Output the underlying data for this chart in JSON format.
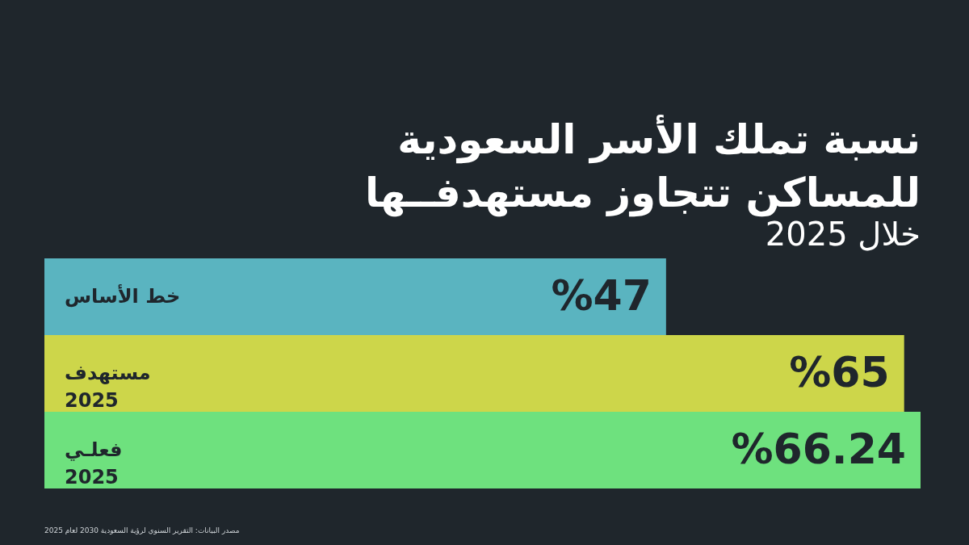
{
  "chart_data": {
    "type": "bar",
    "orientation": "horizontal",
    "title": "نسبة تملك الأسر السعودية\nللمساكن تتجاوز مستهدفــها",
    "subtitle": "خلال 2025",
    "categories": [
      "خط الأساس",
      "مستهدف\n2025",
      "فعلـي\n2025"
    ],
    "values": [
      47,
      65,
      66.24
    ],
    "colors": [
      "#5ab4c0",
      "#cdd64a",
      "#6ee17e"
    ],
    "value_labels": [
      "%47",
      "%65",
      "%66.24"
    ],
    "annotations": [
      "مصدر البيانات: التقرير السنوي لرؤية السعودية 2030 لعام 2025"
    ]
  }
}
